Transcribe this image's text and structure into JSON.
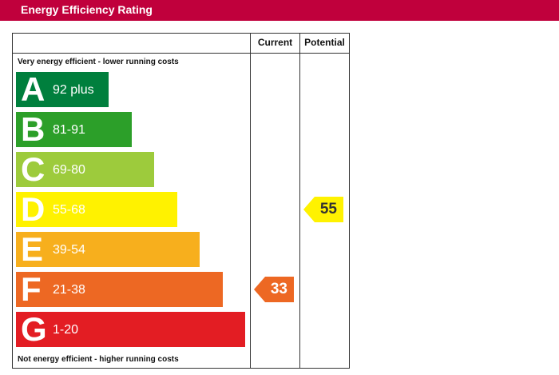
{
  "header": {
    "title": "Energy Efficiency Rating"
  },
  "chart_data": {
    "type": "bar",
    "title": "Energy Efficiency Rating",
    "columns": [
      "Current",
      "Potential"
    ],
    "top_caption": "Very energy efficient - lower running costs",
    "bottom_caption": "Not energy efficient - higher running costs",
    "bands": [
      {
        "letter": "A",
        "range": "92 plus",
        "color": "#007f3d"
      },
      {
        "letter": "B",
        "range": "81-91",
        "color": "#2c9f29"
      },
      {
        "letter": "C",
        "range": "69-80",
        "color": "#9dcb3c"
      },
      {
        "letter": "D",
        "range": "55-68",
        "color": "#fff200"
      },
      {
        "letter": "E",
        "range": "39-54",
        "color": "#f7af1d"
      },
      {
        "letter": "F",
        "range": "21-38",
        "color": "#ed6823"
      },
      {
        "letter": "G",
        "range": "1-20",
        "color": "#e31d23"
      }
    ],
    "current": {
      "value": 33,
      "band": "F",
      "color": "#ed6823"
    },
    "potential": {
      "value": 55,
      "band": "D",
      "color": "#fff200"
    }
  }
}
